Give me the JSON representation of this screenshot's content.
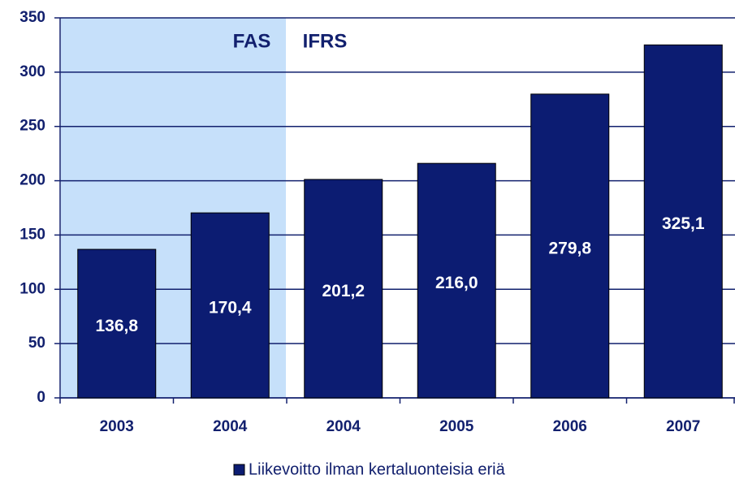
{
  "chart_data": {
    "type": "bar",
    "annotations": [
      "FAS",
      "IFRS"
    ],
    "categories": [
      "2003",
      "2004",
      "2004",
      "2005",
      "2006",
      "2007"
    ],
    "series": [
      {
        "name": "Liikevoitto ilman kertaluonteisia eriä",
        "color": "#0c1c72",
        "values": [
          136.8,
          170.4,
          201.2,
          216.0,
          279.8,
          325.1
        ],
        "value_labels": [
          "136,8",
          "170,4",
          "201,2",
          "216,0",
          "279,8",
          "325,1"
        ]
      }
    ],
    "ylim": [
      0,
      350
    ],
    "yticks": [
      0,
      50,
      100,
      150,
      200,
      250,
      300,
      350
    ],
    "grid": true,
    "legend": "bottom"
  }
}
